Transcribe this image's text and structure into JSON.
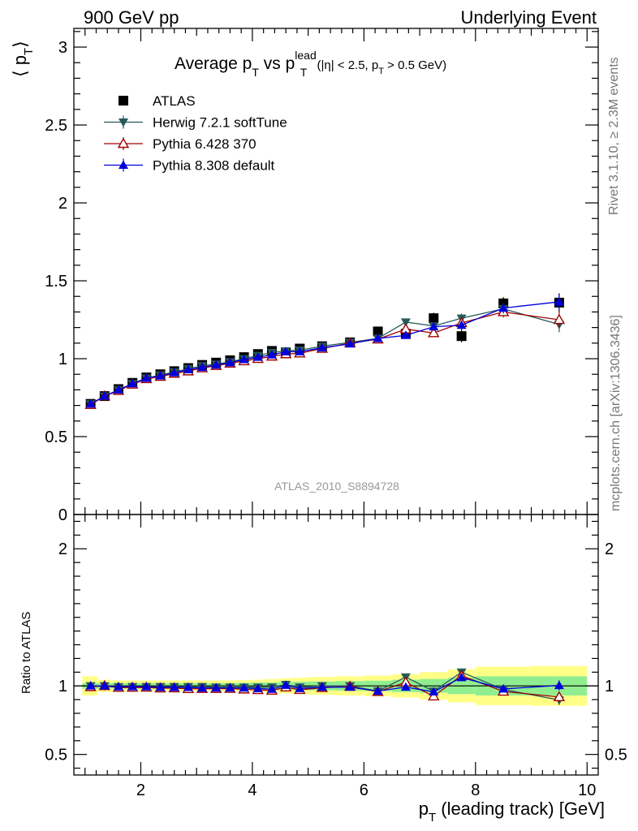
{
  "header": {
    "left": "900 GeV pp",
    "right": "Underlying Event"
  },
  "side": {
    "rivet": "Rivet 3.1.10, ≥ 2.3M events",
    "mcplots": "mcplots.cern.ch [arXiv:1306.3436]"
  },
  "chart_data": {
    "type": "scatter",
    "title": {
      "main": "Average p",
      "sub1": "T",
      "mid": " vs p",
      "sup": "lead",
      "sub2": "T",
      "tail": " (|η| < 2.5, p",
      "sub3": "T",
      "end": " > 0.5 GeV)"
    },
    "analysis_label": "ATLAS_2010_S8894728",
    "xlabel": {
      "main": "p",
      "sub": "T",
      "rest": " (leading track) [GeV]"
    },
    "ylabel": {
      "main": "⟨ p",
      "sub": "T",
      "end": "⟩"
    },
    "ratio_ylabel": "Ratio to ATLAS",
    "xlim": [
      0.8,
      10.2
    ],
    "ylim": [
      0,
      3.12
    ],
    "ratio_ylim": [
      0.35,
      2.25
    ],
    "x_ticks": [
      2,
      4,
      6,
      8,
      10
    ],
    "x_tick_labels": [
      "2",
      "4",
      "6",
      "8",
      "10"
    ],
    "y_ticks": [
      0,
      0.5,
      1,
      1.5,
      2,
      2.5,
      3
    ],
    "y_tick_labels": [
      "0",
      "0.5",
      "1",
      "1.5",
      "2",
      "2.5",
      "3"
    ],
    "ratio_ticks": [
      0.5,
      1,
      2
    ],
    "ratio_tick_labels": [
      "0.5",
      "1",
      "2"
    ],
    "legend_position": "top-left",
    "x": [
      1.1,
      1.35,
      1.6,
      1.85,
      2.1,
      2.35,
      2.6,
      2.85,
      3.1,
      3.35,
      3.6,
      3.85,
      4.1,
      4.35,
      4.6,
      4.85,
      5.25,
      5.75,
      6.25,
      6.75,
      7.25,
      7.75,
      8.5,
      9.5
    ],
    "series": [
      {
        "name": "ATLAS",
        "marker": "square",
        "color": "#000000",
        "values": [
          0.71,
          0.76,
          0.805,
          0.845,
          0.88,
          0.9,
          0.92,
          0.94,
          0.96,
          0.975,
          0.99,
          1.01,
          1.03,
          1.05,
          1.04,
          1.065,
          1.08,
          1.105,
          1.175,
          1.16,
          1.26,
          1.145,
          1.355,
          1.36
        ],
        "errors": [
          0.01,
          0.01,
          0.01,
          0.01,
          0.01,
          0.01,
          0.01,
          0.01,
          0.01,
          0.01,
          0.01,
          0.012,
          0.012,
          0.013,
          0.015,
          0.016,
          0.018,
          0.02,
          0.025,
          0.03,
          0.035,
          0.04,
          0.04,
          0.06
        ]
      },
      {
        "name": "Herwig 7.2.1 softTune",
        "marker": "triangle-down",
        "color": "#285a5a",
        "values": [
          0.71,
          0.76,
          0.8,
          0.84,
          0.875,
          0.895,
          0.915,
          0.935,
          0.955,
          0.965,
          0.98,
          1.0,
          1.02,
          1.04,
          1.05,
          1.055,
          1.08,
          1.105,
          1.13,
          1.235,
          1.21,
          1.26,
          1.32,
          1.22
        ],
        "errors": [
          0.005,
          0.005,
          0.005,
          0.005,
          0.005,
          0.005,
          0.005,
          0.006,
          0.006,
          0.006,
          0.007,
          0.008,
          0.008,
          0.009,
          0.01,
          0.01,
          0.012,
          0.013,
          0.015,
          0.02,
          0.025,
          0.03,
          0.035,
          0.05
        ]
      },
      {
        "name": "Pythia 6.428 370",
        "marker": "triangle-up-open",
        "color": "#a00000",
        "values": [
          0.705,
          0.76,
          0.795,
          0.835,
          0.87,
          0.885,
          0.905,
          0.92,
          0.94,
          0.955,
          0.97,
          0.985,
          1.0,
          1.015,
          1.03,
          1.035,
          1.065,
          1.1,
          1.125,
          1.19,
          1.165,
          1.23,
          1.3,
          1.25
        ],
        "errors": [
          0.005,
          0.005,
          0.005,
          0.005,
          0.005,
          0.005,
          0.005,
          0.006,
          0.006,
          0.006,
          0.007,
          0.008,
          0.008,
          0.009,
          0.01,
          0.01,
          0.012,
          0.013,
          0.015,
          0.02,
          0.025,
          0.03,
          0.035,
          0.05
        ]
      },
      {
        "name": "Pythia 8.308 default",
        "marker": "triangle-up",
        "color": "#0000dd",
        "values": [
          0.71,
          0.76,
          0.8,
          0.84,
          0.875,
          0.89,
          0.91,
          0.93,
          0.945,
          0.96,
          0.975,
          0.995,
          1.01,
          1.025,
          1.045,
          1.045,
          1.07,
          1.095,
          1.13,
          1.15,
          1.205,
          1.215,
          1.325,
          1.365
        ],
        "errors": [
          0.005,
          0.005,
          0.005,
          0.005,
          0.005,
          0.005,
          0.005,
          0.006,
          0.006,
          0.006,
          0.007,
          0.008,
          0.008,
          0.009,
          0.01,
          0.01,
          0.012,
          0.013,
          0.015,
          0.02,
          0.025,
          0.03,
          0.035,
          0.05
        ]
      }
    ],
    "ratio_bands": {
      "inner_color": "#90ee90",
      "outer_color": "#ffff88",
      "bin_edges": [
        0.95,
        1.22,
        1.47,
        1.72,
        1.97,
        2.22,
        2.47,
        2.72,
        2.97,
        3.22,
        3.47,
        3.72,
        3.97,
        4.22,
        4.47,
        4.72,
        5.0,
        5.5,
        6.0,
        6.5,
        7.0,
        7.5,
        8.0,
        9.0,
        10.0
      ],
      "inner": [
        0.02,
        0.02,
        0.02,
        0.02,
        0.02,
        0.02,
        0.02,
        0.02,
        0.02,
        0.02,
        0.02,
        0.022,
        0.024,
        0.025,
        0.028,
        0.03,
        0.032,
        0.035,
        0.038,
        0.045,
        0.05,
        0.06,
        0.07,
        0.07
      ],
      "outer": [
        0.07,
        0.045,
        0.04,
        0.04,
        0.04,
        0.04,
        0.04,
        0.04,
        0.04,
        0.04,
        0.04,
        0.042,
        0.045,
        0.05,
        0.055,
        0.06,
        0.065,
        0.07,
        0.075,
        0.085,
        0.1,
        0.12,
        0.14,
        0.145
      ]
    }
  }
}
